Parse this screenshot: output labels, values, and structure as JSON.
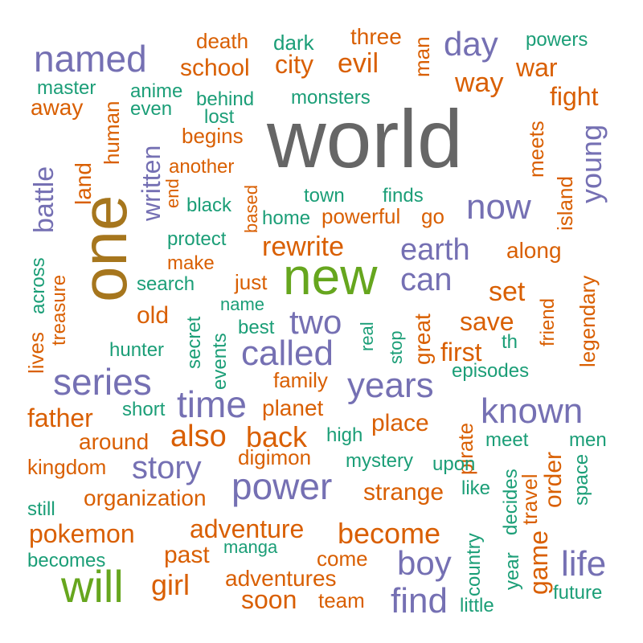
{
  "palette": {
    "gray": "#666666",
    "gold": "#A6761D",
    "green": "#66A61E",
    "purple": "#7570B3",
    "orange": "#D95F02",
    "teal": "#1B9E77"
  },
  "words": [
    {
      "text": "world",
      "color": "gray"
    },
    {
      "text": "one",
      "color": "gold"
    },
    {
      "text": "new",
      "color": "green"
    },
    {
      "text": "will",
      "color": "green"
    },
    {
      "text": "named",
      "color": "purple"
    },
    {
      "text": "day",
      "color": "purple"
    },
    {
      "text": "now",
      "color": "purple"
    },
    {
      "text": "young",
      "color": "purple"
    },
    {
      "text": "battle",
      "color": "purple"
    },
    {
      "text": "written",
      "color": "purple"
    },
    {
      "text": "earth",
      "color": "purple"
    },
    {
      "text": "can",
      "color": "purple"
    },
    {
      "text": "two",
      "color": "purple"
    },
    {
      "text": "called",
      "color": "purple"
    },
    {
      "text": "series",
      "color": "purple"
    },
    {
      "text": "time",
      "color": "purple"
    },
    {
      "text": "years",
      "color": "purple"
    },
    {
      "text": "known",
      "color": "purple"
    },
    {
      "text": "story",
      "color": "purple"
    },
    {
      "text": "power",
      "color": "purple"
    },
    {
      "text": "boy",
      "color": "purple"
    },
    {
      "text": "life",
      "color": "purple"
    },
    {
      "text": "find",
      "color": "purple"
    },
    {
      "text": "death",
      "color": "orange"
    },
    {
      "text": "three",
      "color": "orange"
    },
    {
      "text": "school",
      "color": "orange"
    },
    {
      "text": "city",
      "color": "orange"
    },
    {
      "text": "evil",
      "color": "orange"
    },
    {
      "text": "man",
      "color": "orange"
    },
    {
      "text": "way",
      "color": "orange"
    },
    {
      "text": "war",
      "color": "orange"
    },
    {
      "text": "away",
      "color": "orange"
    },
    {
      "text": "fight",
      "color": "orange"
    },
    {
      "text": "land",
      "color": "orange"
    },
    {
      "text": "human",
      "color": "orange"
    },
    {
      "text": "begins",
      "color": "orange"
    },
    {
      "text": "meets",
      "color": "orange"
    },
    {
      "text": "another",
      "color": "orange"
    },
    {
      "text": "end",
      "color": "orange"
    },
    {
      "text": "powerful",
      "color": "orange"
    },
    {
      "text": "go",
      "color": "orange"
    },
    {
      "text": "island",
      "color": "orange"
    },
    {
      "text": "based",
      "color": "orange"
    },
    {
      "text": "rewrite",
      "color": "orange"
    },
    {
      "text": "make",
      "color": "orange"
    },
    {
      "text": "along",
      "color": "orange"
    },
    {
      "text": "treasure",
      "color": "orange"
    },
    {
      "text": "lives",
      "color": "orange"
    },
    {
      "text": "just",
      "color": "orange"
    },
    {
      "text": "set",
      "color": "orange"
    },
    {
      "text": "old",
      "color": "orange"
    },
    {
      "text": "friend",
      "color": "orange"
    },
    {
      "text": "legendary",
      "color": "orange"
    },
    {
      "text": "save",
      "color": "orange"
    },
    {
      "text": "great",
      "color": "orange"
    },
    {
      "text": "first",
      "color": "orange"
    },
    {
      "text": "family",
      "color": "orange"
    },
    {
      "text": "planet",
      "color": "orange"
    },
    {
      "text": "father",
      "color": "orange"
    },
    {
      "text": "also",
      "color": "orange"
    },
    {
      "text": "back",
      "color": "orange"
    },
    {
      "text": "place",
      "color": "orange"
    },
    {
      "text": "pirate",
      "color": "orange"
    },
    {
      "text": "around",
      "color": "orange"
    },
    {
      "text": "kingdom",
      "color": "orange"
    },
    {
      "text": "digimon",
      "color": "orange"
    },
    {
      "text": "organization",
      "color": "orange"
    },
    {
      "text": "strange",
      "color": "orange"
    },
    {
      "text": "order",
      "color": "orange"
    },
    {
      "text": "travel",
      "color": "orange"
    },
    {
      "text": "pokemon",
      "color": "orange"
    },
    {
      "text": "adventure",
      "color": "orange"
    },
    {
      "text": "become",
      "color": "orange"
    },
    {
      "text": "past",
      "color": "orange"
    },
    {
      "text": "come",
      "color": "orange"
    },
    {
      "text": "girl",
      "color": "orange"
    },
    {
      "text": "adventures",
      "color": "orange"
    },
    {
      "text": "soon",
      "color": "orange"
    },
    {
      "text": "team",
      "color": "orange"
    },
    {
      "text": "game",
      "color": "orange"
    },
    {
      "text": "dark",
      "color": "teal"
    },
    {
      "text": "powers",
      "color": "teal"
    },
    {
      "text": "master",
      "color": "teal"
    },
    {
      "text": "anime",
      "color": "teal"
    },
    {
      "text": "even",
      "color": "teal"
    },
    {
      "text": "behind",
      "color": "teal"
    },
    {
      "text": "lost",
      "color": "teal"
    },
    {
      "text": "monsters",
      "color": "teal"
    },
    {
      "text": "black",
      "color": "teal"
    },
    {
      "text": "town",
      "color": "teal"
    },
    {
      "text": "finds",
      "color": "teal"
    },
    {
      "text": "home",
      "color": "teal"
    },
    {
      "text": "protect",
      "color": "teal"
    },
    {
      "text": "search",
      "color": "teal"
    },
    {
      "text": "across",
      "color": "teal"
    },
    {
      "text": "name",
      "color": "teal"
    },
    {
      "text": "secret",
      "color": "teal"
    },
    {
      "text": "best",
      "color": "teal"
    },
    {
      "text": "hunter",
      "color": "teal"
    },
    {
      "text": "events",
      "color": "teal"
    },
    {
      "text": "real",
      "color": "teal"
    },
    {
      "text": "stop",
      "color": "teal"
    },
    {
      "text": "th",
      "color": "teal"
    },
    {
      "text": "episodes",
      "color": "teal"
    },
    {
      "text": "short",
      "color": "teal"
    },
    {
      "text": "high",
      "color": "teal"
    },
    {
      "text": "meet",
      "color": "teal"
    },
    {
      "text": "men",
      "color": "teal"
    },
    {
      "text": "mystery",
      "color": "teal"
    },
    {
      "text": "upon",
      "color": "teal"
    },
    {
      "text": "space",
      "color": "teal"
    },
    {
      "text": "like",
      "color": "teal"
    },
    {
      "text": "decides",
      "color": "teal"
    },
    {
      "text": "still",
      "color": "teal"
    },
    {
      "text": "manga",
      "color": "teal"
    },
    {
      "text": "year",
      "color": "teal"
    },
    {
      "text": "country",
      "color": "teal"
    },
    {
      "text": "becomes",
      "color": "teal"
    },
    {
      "text": "little",
      "color": "teal"
    },
    {
      "text": "future",
      "color": "teal"
    }
  ]
}
